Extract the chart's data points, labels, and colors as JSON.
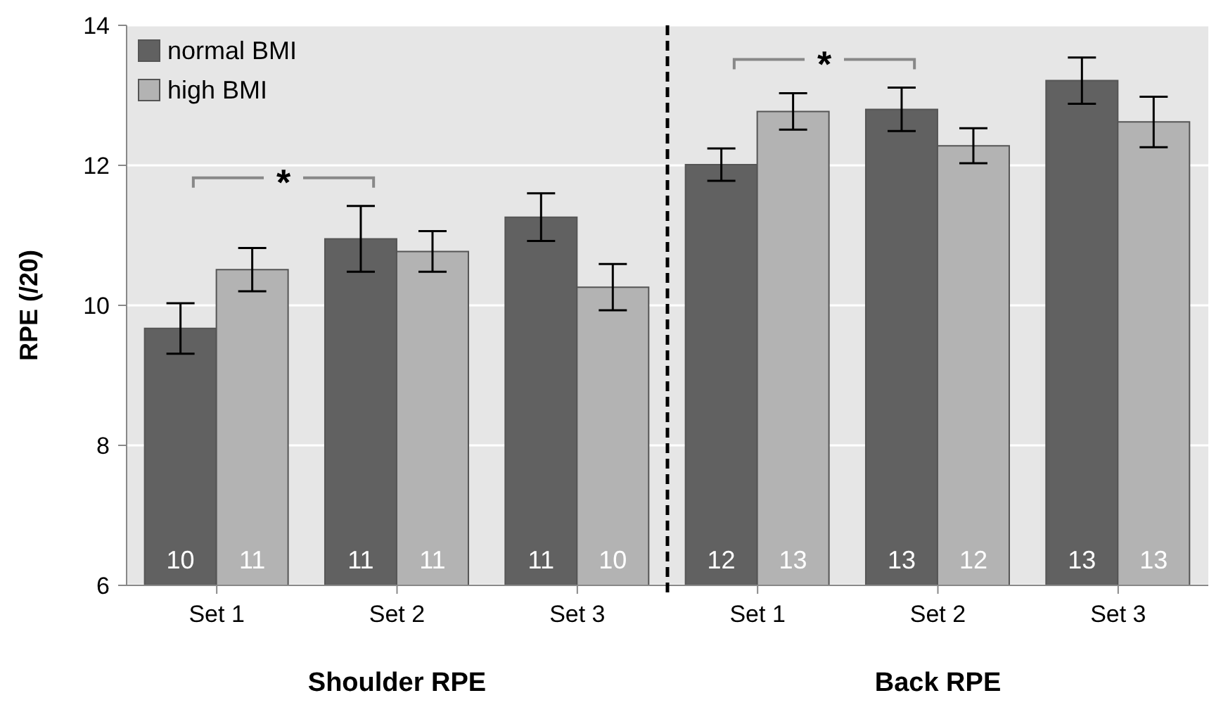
{
  "chart_data": {
    "type": "bar",
    "ylabel": "RPE (/20)",
    "categories": [
      "Set 1",
      "Set 2",
      "Set 3",
      "Set 1",
      "Set 2",
      "Set 3"
    ],
    "series": [
      {
        "name": "normal BMI",
        "color": "#616161",
        "values": [
          9.67,
          10.95,
          11.26,
          12.01,
          12.8,
          13.21
        ],
        "errors": [
          0.36,
          0.47,
          0.34,
          0.23,
          0.31,
          0.33
        ],
        "value_labels": [
          "10",
          "11",
          "11",
          "12",
          "13",
          "13"
        ]
      },
      {
        "name": "high BMI",
        "color": "#b3b3b3",
        "values": [
          10.51,
          10.77,
          10.26,
          12.77,
          12.28,
          12.62
        ],
        "errors": [
          0.31,
          0.29,
          0.33,
          0.26,
          0.25,
          0.36
        ],
        "value_labels": [
          "11",
          "11",
          "10",
          "13",
          "12",
          "13"
        ]
      }
    ],
    "ylim": [
      6,
      14
    ],
    "yticks": [
      6,
      8,
      10,
      12,
      14
    ],
    "grid": "y",
    "legend": "top left",
    "annotations": [
      "Shoulder RPE",
      "Back RPE",
      "*",
      "*"
    ]
  }
}
